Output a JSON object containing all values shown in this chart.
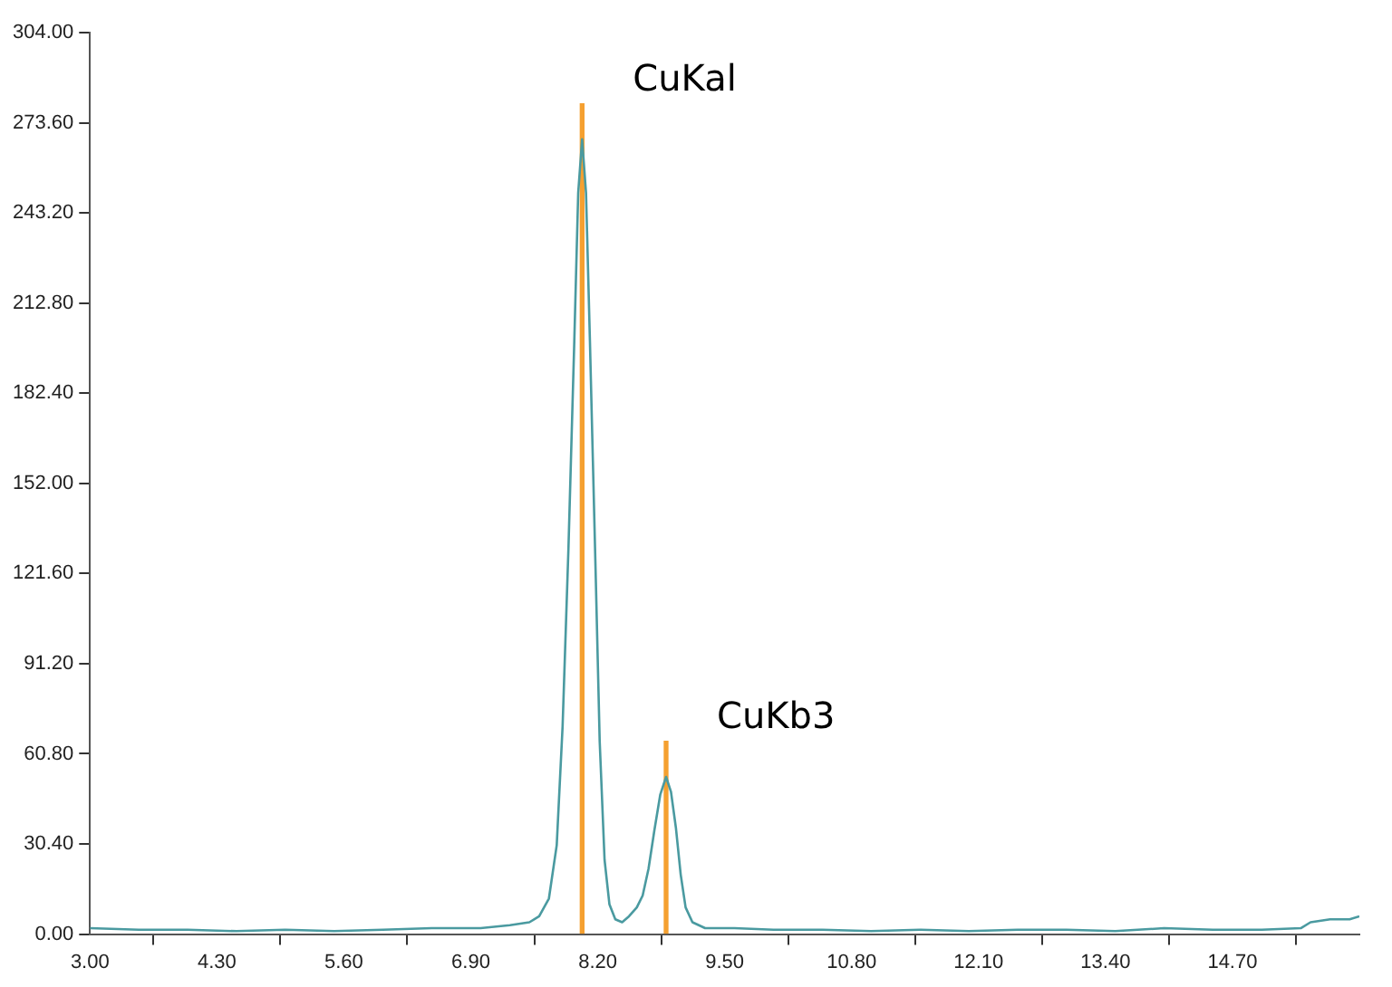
{
  "chart_data": {
    "type": "line",
    "xlim": [
      3.0,
      16.0
    ],
    "xticks": [
      {
        "value": 3.0,
        "label": "3.00"
      },
      {
        "value": 4.3,
        "label": "4.30"
      },
      {
        "value": 5.6,
        "label": "5.60"
      },
      {
        "value": 6.9,
        "label": "6.90"
      },
      {
        "value": 8.2,
        "label": "8.20"
      },
      {
        "value": 9.5,
        "label": "9.50"
      },
      {
        "value": 10.8,
        "label": "10.80"
      },
      {
        "value": 12.1,
        "label": "12.10"
      },
      {
        "value": 13.4,
        "label": "13.40"
      },
      {
        "value": 14.7,
        "label": "14.70"
      }
    ],
    "ylim": [
      0,
      304
    ],
    "yticks": [
      {
        "value": 0,
        "label": "0.00"
      },
      {
        "value": 30.4,
        "label": "30.40"
      },
      {
        "value": 60.8,
        "label": "60.80"
      },
      {
        "value": 91.2,
        "label": "91.20"
      },
      {
        "value": 121.6,
        "label": "121.60"
      },
      {
        "value": 152,
        "label": "152.00"
      },
      {
        "value": 182.4,
        "label": "182.40"
      },
      {
        "value": 212.8,
        "label": "212.80"
      },
      {
        "value": 243.2,
        "label": "243.20"
      },
      {
        "value": 273.6,
        "label": "273.60"
      },
      {
        "value": 304,
        "label": "304.00"
      }
    ],
    "grid": false,
    "legend": false,
    "marker": "none",
    "series": [
      {
        "color": "#4a9aa0",
        "x": [
          3.0,
          3.5,
          4.0,
          4.5,
          5.0,
          5.5,
          6.0,
          6.5,
          7.0,
          7.3,
          7.5,
          7.6,
          7.7,
          7.78,
          7.84,
          7.9,
          7.96,
          8.0,
          8.04,
          8.08,
          8.12,
          8.18,
          8.22,
          8.27,
          8.32,
          8.38,
          8.45,
          8.52,
          8.6,
          8.66,
          8.72,
          8.78,
          8.84,
          8.9,
          8.95,
          9.0,
          9.05,
          9.1,
          9.17,
          9.3,
          9.6,
          10.0,
          10.5,
          11.0,
          11.5,
          12.0,
          12.5,
          13.0,
          13.5,
          14.0,
          14.5,
          15.0,
          15.4,
          15.5,
          15.7,
          15.9,
          16.0
        ],
        "values": [
          2,
          1.5,
          1.5,
          1,
          1.5,
          1,
          1.5,
          2,
          2,
          3,
          4,
          6,
          12,
          30,
          70,
          130,
          200,
          250,
          268,
          250,
          200,
          120,
          65,
          25,
          10,
          5,
          4,
          6,
          9,
          13,
          22,
          35,
          47,
          53,
          48,
          36,
          20,
          9,
          4,
          2,
          2,
          1.5,
          1.5,
          1,
          1.5,
          1,
          1.5,
          1.5,
          1,
          2,
          1.5,
          1.5,
          2,
          4,
          5,
          5,
          6
        ]
      },
      {
        "type": "bar",
        "color": "#f5a030",
        "x": [
          8.04,
          8.9
        ],
        "values": [
          280,
          65
        ]
      }
    ],
    "annotations": [
      {
        "text": "CuKal",
        "x": 8.04,
        "y": 268
      },
      {
        "text": "CuKb3",
        "x": 8.9,
        "y": 53
      }
    ]
  }
}
